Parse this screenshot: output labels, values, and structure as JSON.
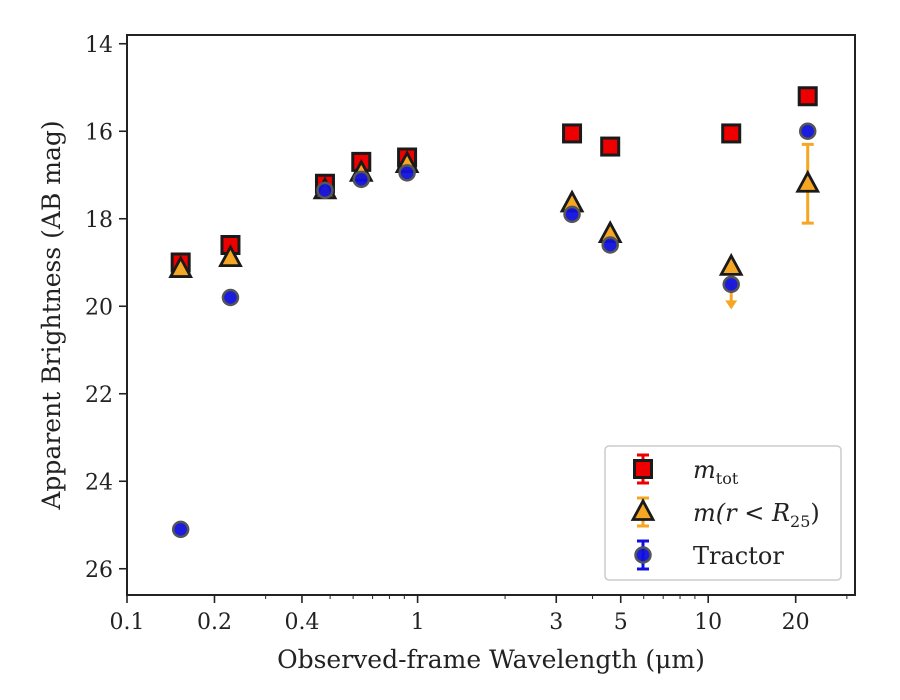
{
  "chart_data": {
    "type": "scatter",
    "title": "",
    "xlabel": "Observed-frame Wavelength (μm)",
    "ylabel": "Apparent Brightness (AB mag)",
    "xscale": "log",
    "xlim": [
      0.1,
      32
    ],
    "ylim": [
      26.6,
      13.8
    ],
    "y_inverted": true,
    "xticks": [
      0.1,
      0.2,
      0.4,
      1,
      3,
      5,
      10,
      20
    ],
    "xtick_labels": [
      "0.1",
      "0.2",
      "0.4",
      "1",
      "3",
      "5",
      "10",
      "20"
    ],
    "yticks": [
      14,
      16,
      18,
      20,
      22,
      24,
      26
    ],
    "ytick_labels": [
      "14",
      "16",
      "18",
      "20",
      "22",
      "24",
      "26"
    ],
    "grid": false,
    "legend_position": "lower-right",
    "series": [
      {
        "name": "m_tot",
        "marker": "square",
        "color": "#ee0000",
        "edge_color": "#1a1a1a",
        "points": [
          {
            "x": 0.153,
            "y": 19.0
          },
          {
            "x": 0.227,
            "y": 18.6
          },
          {
            "x": 0.48,
            "y": 17.2
          },
          {
            "x": 0.64,
            "y": 16.7
          },
          {
            "x": 0.92,
            "y": 16.6
          },
          {
            "x": 3.4,
            "y": 16.05
          },
          {
            "x": 4.6,
            "y": 16.35
          },
          {
            "x": 12.0,
            "y": 16.05
          },
          {
            "x": 22.0,
            "y": 15.2
          }
        ]
      },
      {
        "name": "m(r<R25)",
        "marker": "triangle",
        "color": "#f5a623",
        "edge_color": "#1a1a1a",
        "points": [
          {
            "x": 0.153,
            "y": 19.15
          },
          {
            "x": 0.227,
            "y": 18.9
          },
          {
            "x": 0.48,
            "y": 17.35
          },
          {
            "x": 0.64,
            "y": 16.95
          },
          {
            "x": 0.92,
            "y": 16.75
          },
          {
            "x": 3.4,
            "y": 17.65
          },
          {
            "x": 4.6,
            "y": 18.35
          },
          {
            "x": 12.0,
            "y": 19.1
          },
          {
            "x": 22.0,
            "y": 17.2,
            "yerr": [
              16.3,
              18.1
            ]
          }
        ]
      },
      {
        "name": "Tractor",
        "marker": "circle",
        "color": "#1010dd",
        "edge_color": "#555555",
        "points": [
          {
            "x": 0.153,
            "y": 25.1
          },
          {
            "x": 0.227,
            "y": 19.8
          },
          {
            "x": 0.48,
            "y": 17.35
          },
          {
            "x": 0.64,
            "y": 17.1
          },
          {
            "x": 0.92,
            "y": 16.95
          },
          {
            "x": 3.4,
            "y": 17.9
          },
          {
            "x": 4.6,
            "y": 18.6
          },
          {
            "x": 12.0,
            "y": 19.5,
            "upper_limit": true
          },
          {
            "x": 22.0,
            "y": 16.0
          }
        ]
      }
    ],
    "legend": [
      {
        "label": "m",
        "subscript": "tot",
        "marker": "square",
        "color": "#ee0000",
        "errcolor": "#ee0000"
      },
      {
        "label": "m(r < R",
        "subscript": "25",
        "suffix": ")",
        "marker": "triangle",
        "color": "#f5a623",
        "errcolor": "#f5a623"
      },
      {
        "label": "Tractor",
        "subscript": "",
        "marker": "circle",
        "color": "#1010dd",
        "errcolor": "#1010dd"
      }
    ]
  }
}
